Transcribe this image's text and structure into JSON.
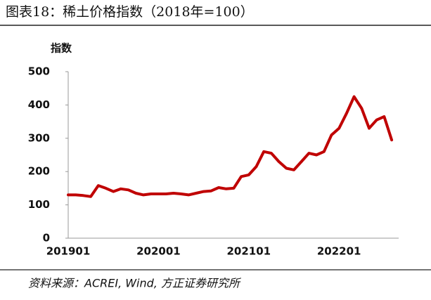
{
  "chart_data": {
    "type": "line",
    "title": "图表18：稀土价格指数（2018年=100）",
    "y_label": "指数",
    "source": "资料来源：ACREI, Wind, 方正证券研究所",
    "categories": [
      "201901",
      null,
      null,
      null,
      null,
      null,
      null,
      null,
      null,
      null,
      null,
      null,
      "202001",
      null,
      null,
      null,
      null,
      null,
      null,
      null,
      null,
      null,
      null,
      null,
      "202101",
      null,
      null,
      null,
      null,
      null,
      null,
      null,
      null,
      null,
      null,
      null,
      "202201",
      null,
      null,
      null,
      null,
      null,
      null,
      null
    ],
    "values": [
      130,
      130,
      128,
      125,
      158,
      150,
      140,
      148,
      145,
      135,
      130,
      133,
      133,
      133,
      135,
      133,
      130,
      135,
      140,
      142,
      152,
      148,
      150,
      185,
      190,
      215,
      260,
      255,
      230,
      210,
      205,
      230,
      255,
      250,
      260,
      310,
      330,
      375,
      425,
      390,
      330,
      355,
      365,
      295
    ],
    "color": "#c00000",
    "ylim": [
      0,
      500
    ],
    "yticks": [
      0,
      100,
      200,
      300,
      400,
      500
    ],
    "grid": false
  }
}
